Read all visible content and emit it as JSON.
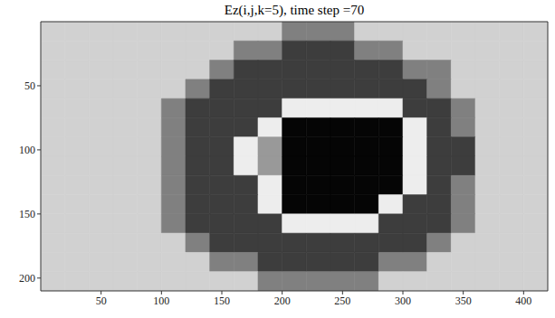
{
  "chart_data": {
    "type": "heatmap",
    "title": "Ez(i,j,k=5), time step =70",
    "xlim": [
      0,
      420
    ],
    "ylim": [
      0,
      210
    ],
    "xticks": [
      50,
      100,
      150,
      200,
      250,
      300,
      350,
      400
    ],
    "yticks": [
      50,
      100,
      150,
      200
    ],
    "x_edges": [
      0,
      20,
      40,
      60,
      80,
      100,
      120,
      140,
      160,
      180,
      200,
      220,
      240,
      260,
      280,
      300,
      320,
      340,
      360,
      380,
      400,
      420
    ],
    "y_edges": [
      0,
      15,
      30,
      45,
      60,
      75,
      90,
      105,
      120,
      135,
      150,
      165,
      180,
      195,
      210
    ],
    "clim": [
      0,
      1
    ],
    "cells": [
      [
        0.82,
        0.82,
        0.82,
        0.82,
        0.82,
        0.82,
        0.82,
        0.82,
        0.82,
        0.82,
        0.5,
        0.5,
        0.5,
        0.82,
        0.82,
        0.82,
        0.82,
        0.82,
        0.82,
        0.82,
        0.82
      ],
      [
        0.82,
        0.82,
        0.82,
        0.82,
        0.82,
        0.82,
        0.82,
        0.82,
        0.5,
        0.5,
        0.24,
        0.24,
        0.24,
        0.5,
        0.5,
        0.82,
        0.82,
        0.82,
        0.82,
        0.82,
        0.82
      ],
      [
        0.82,
        0.82,
        0.82,
        0.82,
        0.82,
        0.82,
        0.82,
        0.5,
        0.24,
        0.24,
        0.24,
        0.24,
        0.24,
        0.24,
        0.24,
        0.5,
        0.5,
        0.82,
        0.82,
        0.82,
        0.82
      ],
      [
        0.82,
        0.82,
        0.82,
        0.82,
        0.82,
        0.82,
        0.5,
        0.24,
        0.24,
        0.24,
        0.24,
        0.24,
        0.24,
        0.24,
        0.24,
        0.24,
        0.5,
        0.82,
        0.82,
        0.82,
        0.82
      ],
      [
        0.82,
        0.82,
        0.82,
        0.82,
        0.82,
        0.5,
        0.24,
        0.24,
        0.24,
        0.24,
        0.93,
        0.93,
        0.93,
        0.93,
        0.93,
        0.24,
        0.24,
        0.5,
        0.82,
        0.82,
        0.82
      ],
      [
        0.82,
        0.82,
        0.82,
        0.82,
        0.82,
        0.5,
        0.24,
        0.24,
        0.24,
        0.93,
        0.02,
        0.02,
        0.02,
        0.02,
        0.02,
        0.93,
        0.24,
        0.5,
        0.82,
        0.82,
        0.82
      ],
      [
        0.82,
        0.82,
        0.82,
        0.82,
        0.82,
        0.5,
        0.24,
        0.24,
        0.93,
        0.6,
        0.02,
        0.02,
        0.02,
        0.02,
        0.02,
        0.93,
        0.24,
        0.24,
        0.82,
        0.82,
        0.82
      ],
      [
        0.82,
        0.82,
        0.82,
        0.82,
        0.82,
        0.5,
        0.24,
        0.24,
        0.93,
        0.6,
        0.02,
        0.02,
        0.02,
        0.02,
        0.02,
        0.93,
        0.24,
        0.24,
        0.82,
        0.82,
        0.82
      ],
      [
        0.82,
        0.82,
        0.82,
        0.82,
        0.82,
        0.5,
        0.24,
        0.24,
        0.24,
        0.93,
        0.02,
        0.02,
        0.02,
        0.02,
        0.02,
        0.93,
        0.24,
        0.5,
        0.82,
        0.82,
        0.82
      ],
      [
        0.82,
        0.82,
        0.82,
        0.82,
        0.82,
        0.5,
        0.24,
        0.24,
        0.24,
        0.93,
        0.02,
        0.02,
        0.02,
        0.02,
        0.93,
        0.24,
        0.24,
        0.5,
        0.82,
        0.82,
        0.82
      ],
      [
        0.82,
        0.82,
        0.82,
        0.82,
        0.82,
        0.5,
        0.24,
        0.24,
        0.24,
        0.24,
        0.93,
        0.93,
        0.93,
        0.93,
        0.24,
        0.24,
        0.24,
        0.5,
        0.82,
        0.82,
        0.82
      ],
      [
        0.82,
        0.82,
        0.82,
        0.82,
        0.82,
        0.82,
        0.5,
        0.24,
        0.24,
        0.24,
        0.24,
        0.24,
        0.24,
        0.24,
        0.24,
        0.24,
        0.5,
        0.82,
        0.82,
        0.82,
        0.82
      ],
      [
        0.82,
        0.82,
        0.82,
        0.82,
        0.82,
        0.82,
        0.82,
        0.5,
        0.5,
        0.24,
        0.24,
        0.24,
        0.24,
        0.24,
        0.5,
        0.5,
        0.82,
        0.82,
        0.82,
        0.82,
        0.82
      ],
      [
        0.82,
        0.82,
        0.82,
        0.82,
        0.82,
        0.82,
        0.82,
        0.82,
        0.82,
        0.5,
        0.5,
        0.5,
        0.5,
        0.5,
        0.82,
        0.82,
        0.82,
        0.82,
        0.82,
        0.82,
        0.82
      ]
    ]
  }
}
